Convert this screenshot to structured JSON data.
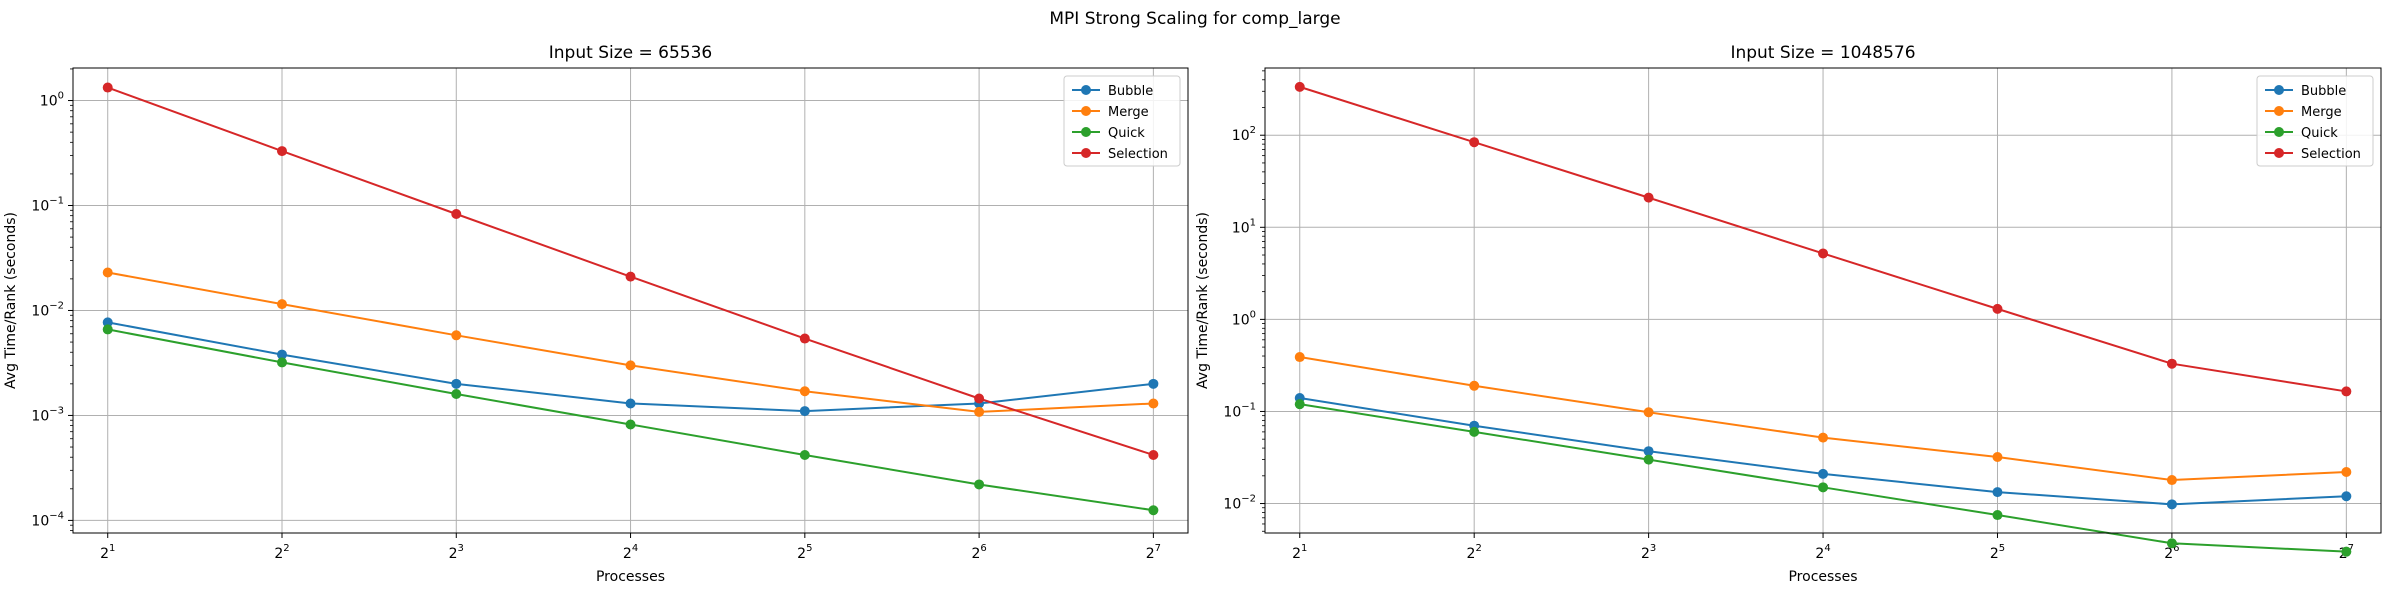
{
  "figure": {
    "suptitle": "MPI Strong Scaling for comp_large"
  },
  "colors": {
    "Bubble": "#1f77b4",
    "Merge": "#ff7f0e",
    "Quick": "#2ca02c",
    "Selection": "#d62728"
  },
  "chart_data": [
    {
      "type": "line",
      "title": "Input Size = 65536",
      "xlabel": "Processes",
      "ylabel": "Avg Time/Rank (seconds)",
      "xscale": "log2",
      "yscale": "log10",
      "grid": true,
      "legend": "top-right",
      "x": [
        2,
        4,
        8,
        16,
        32,
        64,
        128
      ],
      "x_tick_labels": [
        {
          "base": "2",
          "exp": "1"
        },
        {
          "base": "2",
          "exp": "2"
        },
        {
          "base": "2",
          "exp": "3"
        },
        {
          "base": "2",
          "exp": "4"
        },
        {
          "base": "2",
          "exp": "5"
        },
        {
          "base": "2",
          "exp": "6"
        },
        {
          "base": "2",
          "exp": "7"
        }
      ],
      "y_ticks": [
        0.0001,
        0.001,
        0.01,
        0.1,
        1
      ],
      "y_tick_labels": [
        {
          "base": "10",
          "exp": "−4"
        },
        {
          "base": "10",
          "exp": "−3"
        },
        {
          "base": "10",
          "exp": "−2"
        },
        {
          "base": "10",
          "exp": "−1"
        },
        {
          "base": "10",
          "exp": "0"
        }
      ],
      "series": [
        {
          "name": "Bubble",
          "values": [
            0.0077,
            0.0038,
            0.002,
            0.0013,
            0.0011,
            0.0013,
            0.002
          ]
        },
        {
          "name": "Merge",
          "values": [
            0.023,
            0.0115,
            0.0058,
            0.003,
            0.0017,
            0.00108,
            0.0013
          ]
        },
        {
          "name": "Quick",
          "values": [
            0.0066,
            0.0032,
            0.0016,
            0.00082,
            0.00042,
            0.00022,
            0.000125
          ]
        },
        {
          "name": "Selection",
          "values": [
            1.33,
            0.33,
            0.083,
            0.021,
            0.0054,
            0.00145,
            0.00042
          ]
        }
      ]
    },
    {
      "type": "line",
      "title": "Input Size = 1048576",
      "xlabel": "Processes",
      "ylabel": "Avg Time/Rank (seconds)",
      "xscale": "log2",
      "yscale": "log10",
      "grid": true,
      "legend": "top-right",
      "x": [
        2,
        4,
        8,
        16,
        32,
        64,
        128
      ],
      "x_tick_labels": [
        {
          "base": "2",
          "exp": "1"
        },
        {
          "base": "2",
          "exp": "2"
        },
        {
          "base": "2",
          "exp": "3"
        },
        {
          "base": "2",
          "exp": "4"
        },
        {
          "base": "2",
          "exp": "5"
        },
        {
          "base": "2",
          "exp": "6"
        },
        {
          "base": "2",
          "exp": "7"
        }
      ],
      "y_ticks": [
        0.01,
        0.1,
        1,
        10,
        100
      ],
      "y_tick_labels": [
        {
          "base": "10",
          "exp": "−2"
        },
        {
          "base": "10",
          "exp": "−1"
        },
        {
          "base": "10",
          "exp": "0"
        },
        {
          "base": "10",
          "exp": "1"
        },
        {
          "base": "10",
          "exp": "2"
        }
      ],
      "series": [
        {
          "name": "Bubble",
          "values": [
            0.14,
            0.07,
            0.037,
            0.021,
            0.0133,
            0.0098,
            0.012
          ]
        },
        {
          "name": "Merge",
          "values": [
            0.39,
            0.19,
            0.098,
            0.052,
            0.032,
            0.018,
            0.022
          ]
        },
        {
          "name": "Quick",
          "values": [
            0.12,
            0.06,
            0.03,
            0.015,
            0.0075,
            0.0037,
            0.003
          ]
        },
        {
          "name": "Selection",
          "values": [
            335,
            84,
            21,
            5.2,
            1.3,
            0.33,
            0.165
          ]
        }
      ]
    }
  ]
}
